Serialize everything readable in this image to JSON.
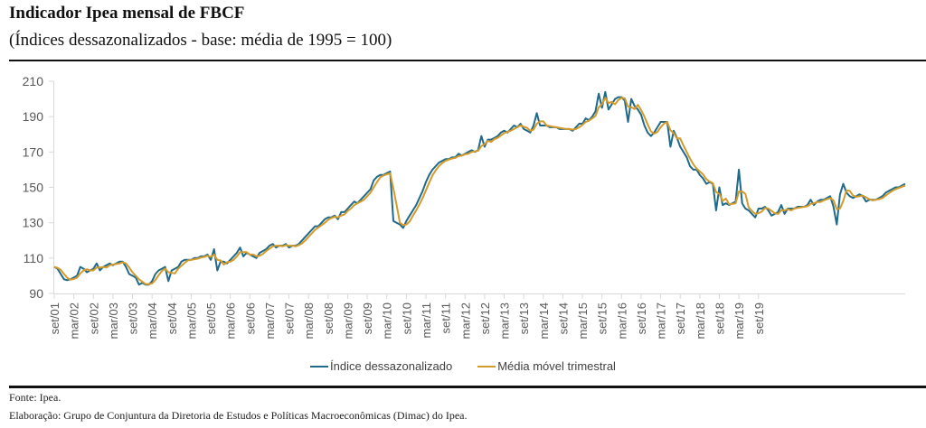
{
  "header": {
    "title": "Indicador Ipea mensal de FBCF",
    "subtitle": "(Índices dessazonalizados - base: média de 1995 = 100)"
  },
  "footer": {
    "source": "Fonte: Ipea.",
    "credit": "Elaboração: Grupo de Conjuntura da Diretoria de Estudos e Políticas Macroeconômicas (Dimac) do Ipea."
  },
  "chart_data": {
    "type": "line",
    "title": "Indicador Ipea mensal de FBCF",
    "subtitle": "(Índices dessazonalizados - base: média de 1995 = 100)",
    "xlabel": "",
    "ylabel": "",
    "ylim": [
      90,
      210
    ],
    "yticks": [
      90,
      110,
      130,
      150,
      170,
      190,
      210
    ],
    "grid": false,
    "legend_position": "bottom",
    "x_start": "set/01",
    "x_end": "set/19",
    "frequency": "monthly",
    "xtick_labels": [
      "set/01",
      "mar/02",
      "set/02",
      "mar/03",
      "set/03",
      "mar/04",
      "set/04",
      "mar/05",
      "set/05",
      "mar/06",
      "set/06",
      "mar/07",
      "set/07",
      "mar/08",
      "set/08",
      "mar/09",
      "set/09",
      "mar/10",
      "set/10",
      "mar/11",
      "set/11",
      "mar/12",
      "set/12",
      "mar/13",
      "set/13",
      "mar/14",
      "set/14",
      "mar/15",
      "set/15",
      "mar/16",
      "set/16",
      "mar/17",
      "set/17",
      "mar/18",
      "set/18",
      "mar/19",
      "set/19"
    ],
    "series": [
      {
        "name": "Índice dessazonalizado",
        "color": "#1F6A8A",
        "values": [
          105,
          104,
          101,
          98,
          97.5,
          98,
          99,
          100,
          105,
          104,
          102,
          103,
          104,
          107,
          103,
          105,
          106,
          107,
          106,
          107,
          108,
          108,
          105,
          101,
          100,
          99,
          95,
          96,
          95,
          95,
          97,
          101,
          103,
          104,
          105,
          97,
          103,
          104,
          105,
          108,
          109,
          109,
          109,
          110,
          110,
          111,
          111,
          112,
          109,
          115,
          103,
          108,
          108,
          107,
          109,
          111,
          113,
          116,
          111,
          113,
          112,
          111,
          110,
          113,
          114,
          115,
          117,
          118,
          116,
          117,
          117,
          118,
          116,
          117,
          117,
          118,
          120,
          122,
          124,
          126,
          128,
          128,
          130,
          132,
          133,
          133,
          134,
          132,
          136,
          136,
          138,
          140,
          142,
          141,
          143,
          145,
          147,
          149,
          154,
          156,
          157,
          157,
          158,
          159,
          131,
          130,
          129,
          127,
          131,
          134,
          137,
          140,
          144,
          148,
          153,
          157,
          160,
          162,
          164,
          165,
          166,
          166,
          167,
          167,
          169,
          168,
          169,
          170,
          171,
          170,
          171,
          179,
          173,
          177,
          177,
          178,
          179,
          181,
          182,
          181,
          183,
          185,
          184,
          186,
          183,
          182,
          181,
          185,
          192,
          185,
          185,
          185,
          184,
          184,
          184,
          183,
          183,
          183,
          183,
          182,
          184,
          186,
          186,
          189,
          188,
          190,
          193,
          203,
          195,
          204,
          194,
          197,
          200,
          201,
          201,
          199,
          187,
          200,
          196,
          194,
          191,
          185,
          181,
          179,
          181,
          184,
          187,
          187,
          187,
          173,
          182,
          178,
          173,
          170,
          167,
          162,
          160,
          160,
          157,
          155,
          152,
          153,
          152,
          137,
          150,
          140,
          141,
          140,
          141,
          142,
          160,
          141,
          138,
          137,
          135,
          133,
          138,
          138,
          139,
          137,
          134,
          135,
          136,
          140,
          135,
          138,
          138,
          138,
          139,
          139,
          139,
          140,
          143,
          140,
          142,
          143,
          143,
          144,
          145,
          139,
          129,
          146,
          152,
          147,
          145,
          144,
          145,
          146,
          145,
          142,
          143,
          143,
          143,
          144,
          145,
          147,
          148,
          149,
          150,
          150,
          151,
          152
        ]
      },
      {
        "name": "Média móvel trimestral",
        "color": "#D49A2A",
        "values": "3-month trailing moving average of Índice dessazonalizado"
      }
    ]
  }
}
